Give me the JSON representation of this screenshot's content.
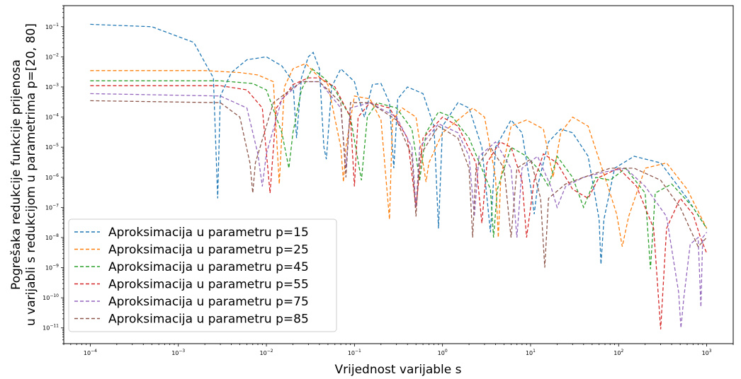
{
  "chart_data": {
    "type": "line",
    "xlabel": "Vrijednost varijable s",
    "ylabel": [
      "Pogrešaka redukcije funkcije prijenosa",
      "u varijabli s redukcijom u parametrima p=[20, 80]"
    ],
    "x_scale": "log",
    "y_scale": "log",
    "xlim": [
      5e-05,
      2000
    ],
    "ylim": [
      3e-12,
      0.5
    ],
    "x_ticks": [
      {
        "base": "10",
        "exp": "−4",
        "value": 0.0001
      },
      {
        "base": "10",
        "exp": "−3",
        "value": 0.001
      },
      {
        "base": "10",
        "exp": "−2",
        "value": 0.01
      },
      {
        "base": "10",
        "exp": "−1",
        "value": 0.1
      },
      {
        "base": "10",
        "exp": "0",
        "value": 1
      },
      {
        "base": "10",
        "exp": "1",
        "value": 10
      },
      {
        "base": "10",
        "exp": "2",
        "value": 100
      },
      {
        "base": "10",
        "exp": "3",
        "value": 1000
      }
    ],
    "y_ticks": [
      {
        "base": "10",
        "exp": "−1",
        "value": 0.1
      },
      {
        "base": "10",
        "exp": "−2",
        "value": 0.01
      },
      {
        "base": "10",
        "exp": "−3",
        "value": 0.001
      },
      {
        "base": "10",
        "exp": "−4",
        "value": 0.0001
      },
      {
        "base": "10",
        "exp": "−5",
        "value": 1e-05
      },
      {
        "base": "10",
        "exp": "−6",
        "value": 1e-06
      },
      {
        "base": "10",
        "exp": "−7",
        "value": 1e-07
      },
      {
        "base": "10",
        "exp": "−8",
        "value": 1e-08
      },
      {
        "base": "10",
        "exp": "−9",
        "value": 1e-09
      },
      {
        "base": "10",
        "exp": "−10",
        "value": 1e-10
      },
      {
        "base": "10",
        "exp": "−11",
        "value": 1e-11
      }
    ],
    "grid": false,
    "legend_position": "bottom-left",
    "series": [
      {
        "name": "Aproksimacija u parametru p=15",
        "color": "#1f77b4",
        "points": [
          [
            0.0001,
            0.12
          ],
          [
            0.0005,
            0.1
          ],
          [
            0.0015,
            0.03
          ],
          [
            0.0025,
            0.002
          ],
          [
            0.0028,
            2e-07
          ],
          [
            0.003,
            0.0005
          ],
          [
            0.004,
            0.003
          ],
          [
            0.006,
            0.008
          ],
          [
            0.01,
            0.01
          ],
          [
            0.015,
            0.005
          ],
          [
            0.02,
            0.0015
          ],
          [
            0.022,
            2e-05
          ],
          [
            0.025,
            0.002
          ],
          [
            0.03,
            0.01
          ],
          [
            0.034,
            0.014
          ],
          [
            0.04,
            0.004
          ],
          [
            0.045,
            1e-05
          ],
          [
            0.048,
            4e-06
          ],
          [
            0.055,
            0.001
          ],
          [
            0.07,
            0.004
          ],
          [
            0.09,
            0.002
          ],
          [
            0.1,
            0.0015
          ],
          [
            0.12,
            0.0002
          ],
          [
            0.13,
            0.0001
          ],
          [
            0.16,
            0.0012
          ],
          [
            0.2,
            0.0013
          ],
          [
            0.25,
            0.0003
          ],
          [
            0.28,
            2e-06
          ],
          [
            0.31,
            0.0004
          ],
          [
            0.4,
            0.001
          ],
          [
            0.6,
            0.0006
          ],
          [
            0.8,
            5e-05
          ],
          [
            0.9,
            2e-08
          ],
          [
            1,
            5e-05
          ],
          [
            1.5,
            0.0003
          ],
          [
            2,
            0.0002
          ],
          [
            2.8,
            1e-05
          ],
          [
            3.5,
            1.5e-08
          ],
          [
            4,
            1e-05
          ],
          [
            6,
            8e-05
          ],
          [
            8,
            3e-05
          ],
          [
            10,
            5e-07
          ],
          [
            11,
            6e-08
          ],
          [
            12,
            5e-07
          ],
          [
            16,
            1.5e-05
          ],
          [
            22,
            4e-05
          ],
          [
            30,
            3e-05
          ],
          [
            45,
            5e-06
          ],
          [
            60,
            4e-08
          ],
          [
            63,
            1.3e-09
          ],
          [
            68,
            4e-08
          ],
          [
            90,
            2e-06
          ],
          [
            150,
            5e-06
          ],
          [
            300,
            3e-06
          ],
          [
            600,
            2e-07
          ],
          [
            1000,
            2e-08
          ]
        ]
      },
      {
        "name": "Aproksimacija u parametru p=25",
        "color": "#ff7f0e",
        "points": [
          [
            0.0001,
            0.0035
          ],
          [
            0.002,
            0.0035
          ],
          [
            0.005,
            0.003
          ],
          [
            0.008,
            0.0025
          ],
          [
            0.012,
            0.0015
          ],
          [
            0.014,
            6e-07
          ],
          [
            0.016,
            0.001
          ],
          [
            0.02,
            0.004
          ],
          [
            0.028,
            0.006
          ],
          [
            0.035,
            0.003
          ],
          [
            0.05,
            0.0012
          ],
          [
            0.07,
            1e-05
          ],
          [
            0.075,
            7e-07
          ],
          [
            0.08,
            1e-05
          ],
          [
            0.1,
            0.0005
          ],
          [
            0.15,
            0.0004
          ],
          [
            0.2,
            8e-05
          ],
          [
            0.25,
            4e-08
          ],
          [
            0.27,
            8e-05
          ],
          [
            0.35,
            0.0002
          ],
          [
            0.5,
            0.0001
          ],
          [
            0.6,
            3e-06
          ],
          [
            0.65,
            7e-07
          ],
          [
            0.7,
            3e-06
          ],
          [
            1,
            3e-05
          ],
          [
            1.5,
            8e-05
          ],
          [
            2.2,
            0.0002
          ],
          [
            3,
            0.0001
          ],
          [
            4,
            1e-06
          ],
          [
            4.3,
            1e-08
          ],
          [
            4.6,
            1e-06
          ],
          [
            6,
            5e-05
          ],
          [
            9,
            8e-05
          ],
          [
            14,
            4e-05
          ],
          [
            18,
            1e-06
          ],
          [
            22,
            3e-05
          ],
          [
            30,
            0.0001
          ],
          [
            45,
            5e-05
          ],
          [
            70,
            1e-06
          ],
          [
            95,
            6e-08
          ],
          [
            110,
            5e-09
          ],
          [
            130,
            5e-08
          ],
          [
            200,
            2e-06
          ],
          [
            350,
            3e-06
          ],
          [
            600,
            4e-07
          ],
          [
            1000,
            2e-08
          ]
        ]
      },
      {
        "name": "Aproksimacija u parametru p=45",
        "color": "#2ca02c",
        "points": [
          [
            0.0001,
            0.0016
          ],
          [
            0.003,
            0.0016
          ],
          [
            0.007,
            0.0013
          ],
          [
            0.01,
            0.0008
          ],
          [
            0.015,
            3e-05
          ],
          [
            0.018,
            2e-06
          ],
          [
            0.02,
            3e-05
          ],
          [
            0.025,
            0.0008
          ],
          [
            0.033,
            0.004
          ],
          [
            0.045,
            0.002
          ],
          [
            0.06,
            0.0008
          ],
          [
            0.09,
            0.0001
          ],
          [
            0.12,
            8e-07
          ],
          [
            0.14,
            0.0001
          ],
          [
            0.18,
            0.0003
          ],
          [
            0.3,
            0.0002
          ],
          [
            0.45,
            4e-05
          ],
          [
            0.55,
            8e-07
          ],
          [
            0.65,
            3e-05
          ],
          [
            0.9,
            0.00015
          ],
          [
            1.3,
            0.0001
          ],
          [
            2,
            2e-05
          ],
          [
            3.5,
            4e-07
          ],
          [
            3.8,
            1e-08
          ],
          [
            4.2,
            4e-07
          ],
          [
            6,
            1e-05
          ],
          [
            9,
            5e-06
          ],
          [
            12,
            2e-06
          ],
          [
            16,
            5e-07
          ],
          [
            20,
            5e-06
          ],
          [
            30,
            1e-06
          ],
          [
            40,
            1e-07
          ],
          [
            55,
            1e-06
          ],
          [
            80,
            8e-07
          ],
          [
            120,
            2e-06
          ],
          [
            200,
            3e-07
          ],
          [
            230,
            9e-10
          ],
          [
            260,
            3e-07
          ],
          [
            400,
            6e-07
          ],
          [
            700,
            1e-07
          ],
          [
            1000,
            2e-08
          ]
        ]
      },
      {
        "name": "Aproksimacija u parametru p=55",
        "color": "#d62728",
        "points": [
          [
            0.0001,
            0.0011
          ],
          [
            0.003,
            0.0011
          ],
          [
            0.006,
            0.0008
          ],
          [
            0.009,
            0.0002
          ],
          [
            0.011,
            3e-07
          ],
          [
            0.013,
            0.0002
          ],
          [
            0.02,
            0.0012
          ],
          [
            0.03,
            0.002
          ],
          [
            0.04,
            0.002
          ],
          [
            0.06,
            0.001
          ],
          [
            0.09,
            0.0001
          ],
          [
            0.1,
            5e-07
          ],
          [
            0.11,
            0.0001
          ],
          [
            0.15,
            0.0003
          ],
          [
            0.25,
            0.0002
          ],
          [
            0.4,
            2e-05
          ],
          [
            0.5,
            1e-07
          ],
          [
            0.6,
            2e-05
          ],
          [
            1,
            0.0001
          ],
          [
            1.5,
            5e-05
          ],
          [
            2.4,
            3e-06
          ],
          [
            2.8,
            3e-08
          ],
          [
            3.2,
            3e-06
          ],
          [
            4.5,
            1.5e-05
          ],
          [
            6,
            1e-05
          ],
          [
            8,
            8e-07
          ],
          [
            9,
            1e-08
          ],
          [
            11,
            8e-07
          ],
          [
            14,
            6e-06
          ],
          [
            20,
            3e-06
          ],
          [
            30,
            4e-07
          ],
          [
            45,
            2e-07
          ],
          [
            60,
            1e-06
          ],
          [
            100,
            2e-06
          ],
          [
            160,
            5e-07
          ],
          [
            250,
            2e-08
          ],
          [
            300,
            9e-12
          ],
          [
            350,
            2e-08
          ],
          [
            500,
            2e-07
          ],
          [
            700,
            6e-08
          ],
          [
            850,
            1e-08
          ],
          [
            1000,
            3e-09
          ]
        ]
      },
      {
        "name": "Aproksimacija u parametru p=75",
        "color": "#9467bd",
        "points": [
          [
            0.0001,
            0.0006
          ],
          [
            0.003,
            0.0005
          ],
          [
            0.006,
            0.0002
          ],
          [
            0.008,
            6e-06
          ],
          [
            0.009,
            5e-07
          ],
          [
            0.01,
            6e-06
          ],
          [
            0.015,
            0.0004
          ],
          [
            0.025,
            0.0015
          ],
          [
            0.04,
            0.0015
          ],
          [
            0.07,
            0.0002
          ],
          [
            0.08,
            2e-06
          ],
          [
            0.09,
            0.0002
          ],
          [
            0.15,
            0.0003
          ],
          [
            0.3,
            0.0001
          ],
          [
            0.45,
            1e-05
          ],
          [
            0.5,
            1e-07
          ],
          [
            0.55,
            1e-05
          ],
          [
            0.9,
            6e-05
          ],
          [
            1.5,
            3e-05
          ],
          [
            2,
            5e-06
          ],
          [
            2.3,
            5e-08
          ],
          [
            2.6,
            5e-06
          ],
          [
            4,
            1.5e-05
          ],
          [
            6,
            2e-06
          ],
          [
            7,
            1e-08
          ],
          [
            8,
            2e-06
          ],
          [
            12,
            5e-06
          ],
          [
            17,
            5e-07
          ],
          [
            20,
            1e-07
          ],
          [
            25,
            5e-07
          ],
          [
            40,
            1e-06
          ],
          [
            70,
            1.5e-06
          ],
          [
            120,
            2e-06
          ],
          [
            200,
            5e-07
          ],
          [
            350,
            5e-08
          ],
          [
            480,
            1.5e-10
          ],
          [
            510,
            1e-11
          ],
          [
            550,
            1e-10
          ],
          [
            650,
            6e-09
          ],
          [
            800,
            1e-08
          ],
          [
            860,
            5e-11
          ],
          [
            900,
            1e-08
          ],
          [
            1000,
            1.5e-08
          ]
        ]
      },
      {
        "name": "Aproksimacija u parametru p=85",
        "color": "#8c564b",
        "points": [
          [
            0.0001,
            0.00035
          ],
          [
            0.003,
            0.0003
          ],
          [
            0.005,
            0.0001
          ],
          [
            0.0065,
            3e-06
          ],
          [
            0.007,
            3e-07
          ],
          [
            0.0075,
            3e-06
          ],
          [
            0.012,
            0.0003
          ],
          [
            0.025,
            0.0015
          ],
          [
            0.04,
            0.0015
          ],
          [
            0.07,
            0.0003
          ],
          [
            0.08,
            1e-06
          ],
          [
            0.09,
            0.0003
          ],
          [
            0.15,
            0.0003
          ],
          [
            0.3,
            8e-05
          ],
          [
            0.45,
            5e-06
          ],
          [
            0.5,
            5e-08
          ],
          [
            0.55,
            5e-06
          ],
          [
            0.9,
            5e-05
          ],
          [
            1.5,
            2e-05
          ],
          [
            2,
            2e-06
          ],
          [
            2.2,
            1e-08
          ],
          [
            2.4,
            2e-06
          ],
          [
            3.5,
            1e-05
          ],
          [
            5,
            2e-06
          ],
          [
            6,
            1e-08
          ],
          [
            7,
            2e-06
          ],
          [
            10,
            4e-06
          ],
          [
            13,
            2e-07
          ],
          [
            14.5,
            1e-09
          ],
          [
            16,
            2e-07
          ],
          [
            25,
            6e-07
          ],
          [
            40,
            1e-06
          ],
          [
            80,
            2e-06
          ],
          [
            150,
            2e-06
          ],
          [
            300,
            8e-07
          ],
          [
            500,
            1e-07
          ],
          [
            800,
            5e-09
          ],
          [
            1000,
            1e-08
          ]
        ]
      }
    ]
  }
}
